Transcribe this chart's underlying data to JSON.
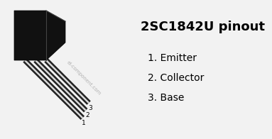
{
  "title": "2SC1842U pinout",
  "pin_labels": [
    "1. Emitter",
    "2. Collector",
    "3. Base"
  ],
  "pin_numbers": [
    "1",
    "2",
    "3"
  ],
  "watermark": "el-component.com",
  "bg_color": "#f2f2f2",
  "text_color": "#000000",
  "title_fontsize": 13,
  "pin_fontsize": 10,
  "body_color": "#111111",
  "lead_dark": "#222222",
  "lead_light": "#d8d8d8",
  "watermark_color": "#aaaaaa"
}
